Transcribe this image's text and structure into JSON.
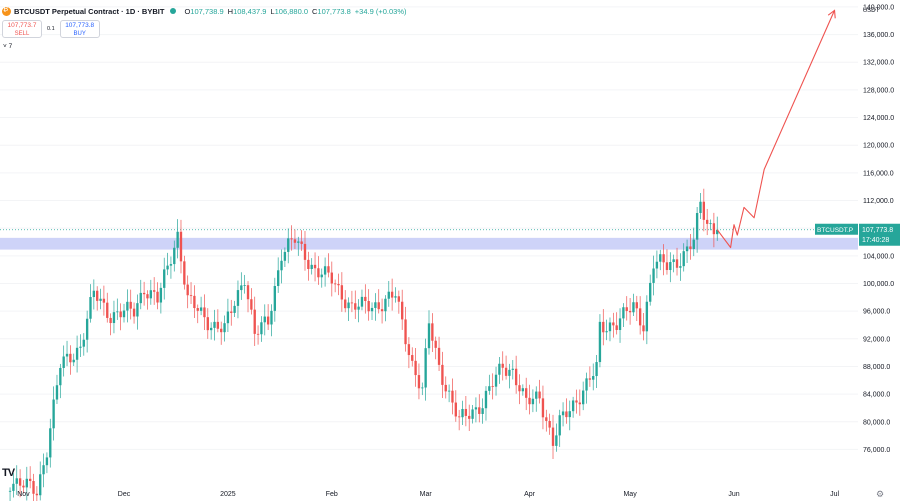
{
  "header": {
    "symbol_title": "BTCUSDT Perpetual Contract · 1D · BYBIT",
    "open_label": "O",
    "open": "107,738.9",
    "high_label": "H",
    "high": "108,437.9",
    "low_label": "L",
    "low": "106,880.0",
    "close_label": "C",
    "close": "107,773.8",
    "change": "+34.9 (+0.03%)"
  },
  "trade": {
    "sell_price": "107,773.7",
    "sell_label": "SELL",
    "spread": "0.1",
    "buy_price": "107,773.8",
    "buy_label": "BUY"
  },
  "indicator_toggle": "˅ 7",
  "currency": "USDT",
  "price_tag": {
    "symbol": "BTCUSDT.P",
    "price": "107,773.8",
    "countdown": "17:40:28"
  },
  "logo": "TV",
  "settings_icon": "gear-icon",
  "colors": {
    "up": "#26a69a",
    "down": "#ef5350",
    "zone": "#c5cbf7",
    "arrow": "#ef5350",
    "tag": "#26a69a"
  },
  "chart_data": {
    "type": "candlestick",
    "timeframe": "1D",
    "y_ticks": [
      "140,000.0",
      "136,000.0",
      "132,000.0",
      "128,000.0",
      "124,000.0",
      "120,000.0",
      "116,000.0",
      "112,000.0",
      "108,000.0",
      "104,000.0",
      "100,000.0",
      "96,000.0",
      "92,000.0",
      "88,000.0",
      "84,000.0",
      "80,000.0",
      "76,000.0"
    ],
    "y_tick_values": [
      140000,
      136000,
      132000,
      128000,
      124000,
      120000,
      116000,
      112000,
      108000,
      104000,
      100000,
      96000,
      92000,
      88000,
      84000,
      80000,
      76000
    ],
    "ylim": [
      71000,
      141000
    ],
    "x_ticks": [
      "Nov",
      "Dec",
      "2025",
      "Feb",
      "Mar",
      "Apr",
      "May",
      "Jun",
      "Jul"
    ],
    "x_tick_dates": [
      "2024-11-01",
      "2024-12-01",
      "2025-01-01",
      "2025-02-01",
      "2025-03-01",
      "2025-04-01",
      "2025-05-01",
      "2025-06-01",
      "2025-07-01"
    ],
    "date_range": [
      "2024-10-25",
      "2025-07-08"
    ],
    "last_candle_date": "2025-05-27",
    "current_price": 107773.8,
    "resistance_zone": [
      104900,
      106600
    ],
    "path_keypoints": [
      [
        "2024-10-28",
        71500
      ],
      [
        "2024-11-05",
        70000
      ],
      [
        "2024-11-08",
        76200
      ],
      [
        "2024-11-12",
        88000
      ],
      [
        "2024-11-18",
        91000
      ],
      [
        "2024-11-22",
        98500
      ],
      [
        "2024-11-27",
        95500
      ],
      [
        "2024-12-04",
        96000
      ],
      [
        "2024-12-07",
        99500
      ],
      [
        "2024-12-11",
        97500
      ],
      [
        "2024-12-17",
        107200
      ],
      [
        "2024-12-20",
        97500
      ],
      [
        "2024-12-27",
        94200
      ],
      [
        "2024-12-31",
        93300
      ],
      [
        "2025-01-06",
        101200
      ],
      [
        "2025-01-09",
        92500
      ],
      [
        "2025-01-13",
        94500
      ],
      [
        "2025-01-17",
        104500
      ],
      [
        "2025-01-21",
        106200
      ],
      [
        "2025-01-27",
        102000
      ],
      [
        "2025-02-01",
        100500
      ],
      [
        "2025-02-07",
        96500
      ],
      [
        "2025-02-15",
        97000
      ],
      [
        "2025-02-20",
        98200
      ],
      [
        "2025-02-25",
        88500
      ],
      [
        "2025-02-28",
        84400
      ],
      [
        "2025-03-02",
        94100
      ],
      [
        "2025-03-05",
        88000
      ],
      [
        "2025-03-11",
        80000
      ],
      [
        "2025-03-18",
        82800
      ],
      [
        "2025-03-24",
        88000
      ],
      [
        "2025-03-27",
        87500
      ],
      [
        "2025-03-31",
        82500
      ],
      [
        "2025-04-04",
        83800
      ],
      [
        "2025-04-08",
        77000
      ],
      [
        "2025-04-10",
        79700
      ],
      [
        "2025-04-16",
        84000
      ],
      [
        "2025-04-21",
        87500
      ],
      [
        "2025-04-22",
        93500
      ],
      [
        "2025-04-27",
        94500
      ],
      [
        "2025-05-02",
        96500
      ],
      [
        "2025-05-05",
        94200
      ],
      [
        "2025-05-08",
        103000
      ],
      [
        "2025-05-12",
        102500
      ],
      [
        "2025-05-16",
        103700
      ],
      [
        "2025-05-20",
        106000
      ],
      [
        "2025-05-22",
        111500
      ],
      [
        "2025-05-24",
        108800
      ],
      [
        "2025-05-27",
        107773.8
      ]
    ],
    "projection_path": [
      [
        "2025-05-27",
        107773.8
      ],
      [
        "2025-05-31",
        105200
      ],
      [
        "2025-06-01",
        108500
      ],
      [
        "2025-06-02",
        107000
      ],
      [
        "2025-06-04",
        111000
      ],
      [
        "2025-06-07",
        109500
      ],
      [
        "2025-06-10",
        116500
      ],
      [
        "2025-07-01",
        139500
      ]
    ]
  }
}
